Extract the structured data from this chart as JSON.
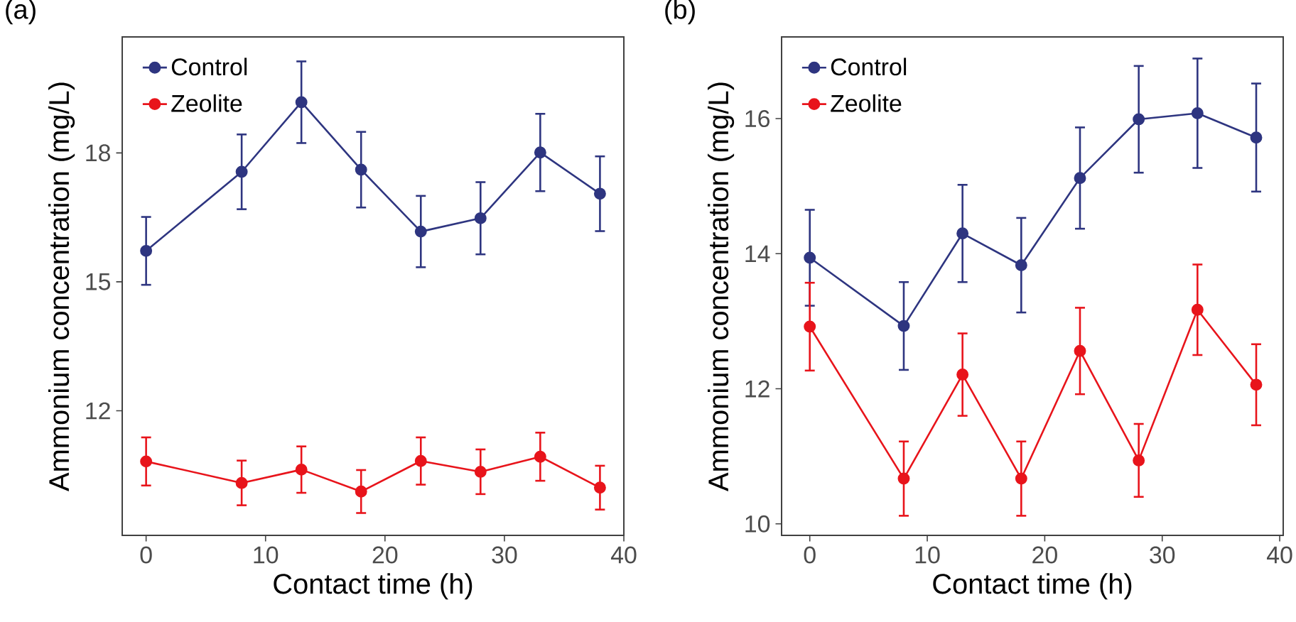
{
  "chart_data": [
    {
      "type": "line",
      "title": "(a)",
      "xlabel": "Contact time (h)",
      "ylabel": "Ammonium concentration (mg/L)",
      "x": [
        0,
        8,
        13,
        18,
        23,
        28,
        33,
        38
      ],
      "series": [
        {
          "name": "Control",
          "color": "#2e3580",
          "values": [
            15.72,
            17.56,
            19.18,
            17.61,
            16.17,
            16.48,
            18.01,
            17.05
          ],
          "errors": [
            0.79,
            0.87,
            0.95,
            0.88,
            0.83,
            0.84,
            0.9,
            0.87
          ]
        },
        {
          "name": "Zeolite",
          "color": "#e8141b",
          "values": [
            10.82,
            10.32,
            10.63,
            10.12,
            10.83,
            10.58,
            10.93,
            10.21
          ],
          "errors": [
            0.56,
            0.52,
            0.54,
            0.5,
            0.55,
            0.52,
            0.56,
            0.51
          ]
        }
      ],
      "xlim": [
        -2,
        40
      ],
      "ylim": [
        9.1,
        20.7
      ],
      "xticks": [
        0,
        10,
        20,
        30,
        40
      ],
      "yticks": [
        12,
        15,
        18
      ],
      "legend": "top left",
      "marker": "circle",
      "line_style": "solid"
    },
    {
      "type": "line",
      "title": "(b)",
      "xlabel": "Contact time (h)",
      "ylabel": "Ammonium concentration (mg/L)",
      "x": [
        0,
        8,
        13,
        18,
        23,
        28,
        33,
        38
      ],
      "series": [
        {
          "name": "Control",
          "color": "#2e3580",
          "values": [
            13.94,
            12.93,
            14.3,
            13.83,
            15.12,
            15.99,
            16.08,
            15.72
          ],
          "errors": [
            0.71,
            0.65,
            0.72,
            0.7,
            0.75,
            0.79,
            0.81,
            0.8
          ]
        },
        {
          "name": "Zeolite",
          "color": "#e8141b",
          "values": [
            12.92,
            10.67,
            12.21,
            10.67,
            12.56,
            10.94,
            13.17,
            12.06
          ],
          "errors": [
            0.65,
            0.55,
            0.61,
            0.55,
            0.64,
            0.54,
            0.67,
            0.6
          ]
        }
      ],
      "xlim": [
        -2.4,
        40.3
      ],
      "ylim": [
        9.83,
        17.21
      ],
      "xticks": [
        0,
        10,
        20,
        30,
        40
      ],
      "yticks": [
        10,
        12,
        14,
        16
      ],
      "legend": "top left",
      "marker": "circle",
      "line_style": "solid"
    }
  ]
}
